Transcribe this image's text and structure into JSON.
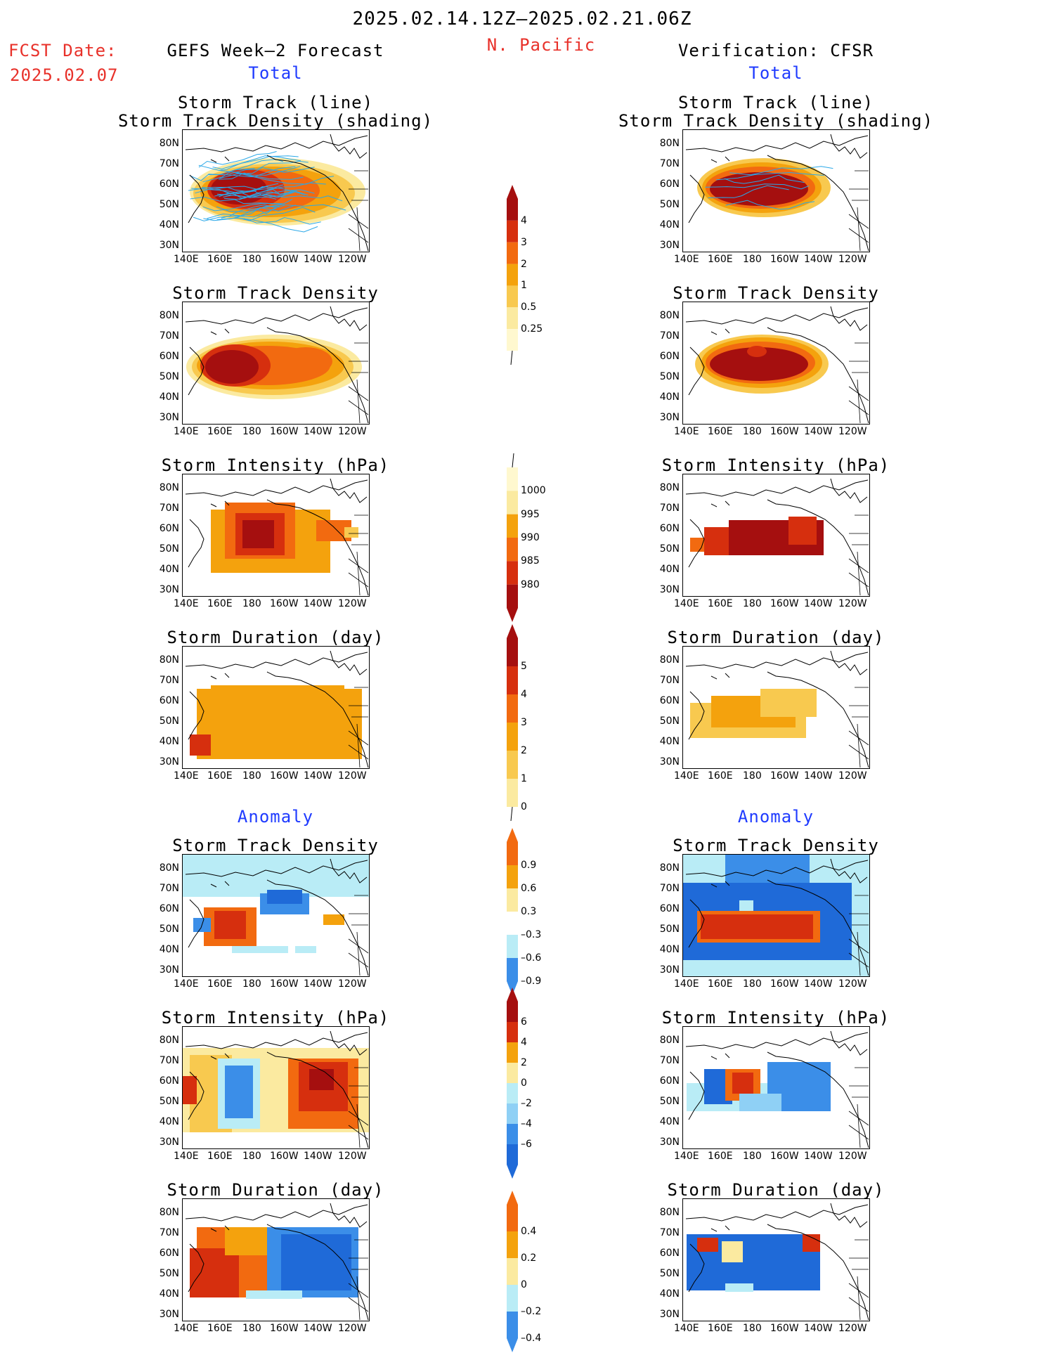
{
  "header": {
    "date_range": "2025.02.14.12Z–2025.02.21.06Z",
    "fcst_label": "FCST Date:",
    "fcst_date": "2025.02.07",
    "forecast_title": "GEFS Week–2 Forecast",
    "region": "N. Pacific",
    "verification_title": "Verification: CFSR",
    "total_left": "Total",
    "total_right": "Total",
    "anomaly_left": "Anomaly",
    "anomaly_right": "Anomaly"
  },
  "panel_titles": {
    "track_line": "Storm Track (line)",
    "track_shading": "Storm Track Density (shading)",
    "density": "Storm Track Density",
    "intensity": "Storm Intensity (hPa)",
    "duration": "Storm Duration (day)"
  },
  "axes": {
    "lat_ticks": [
      "80N",
      "70N",
      "60N",
      "50N",
      "40N",
      "30N"
    ],
    "lon_ticks": [
      "140E",
      "160E",
      "180",
      "160W",
      "140W",
      "120W"
    ]
  },
  "colorbars": {
    "density_total": [
      "4",
      "3",
      "2",
      "1",
      "0.5",
      "0.25"
    ],
    "intensity_total": [
      "1000",
      "995",
      "990",
      "985",
      "980"
    ],
    "duration_total": [
      "5",
      "4",
      "3",
      "2",
      "1",
      "0"
    ],
    "density_anom": [
      "0.9",
      "0.6",
      "0.3",
      "–0.3",
      "–0.6",
      "–0.9"
    ],
    "intensity_anom": [
      "6",
      "4",
      "2",
      "0",
      "–2",
      "–4",
      "–6"
    ],
    "duration_anom": [
      "0.4",
      "0.2",
      "0",
      "–0.2",
      "–0.4"
    ]
  },
  "colors": {
    "darkred": "#a50f0f",
    "red": "#d62f0e",
    "orange": "#f26a10",
    "amber": "#f4a20d",
    "gold": "#f8c94f",
    "paleyellow": "#fbeaa0",
    "lightblue": "#b9ecf6",
    "skyblue": "#8fd0f5",
    "blue": "#3b8ee8",
    "deepblue": "#1f6ad8",
    "track": "#2aa8e8"
  }
}
